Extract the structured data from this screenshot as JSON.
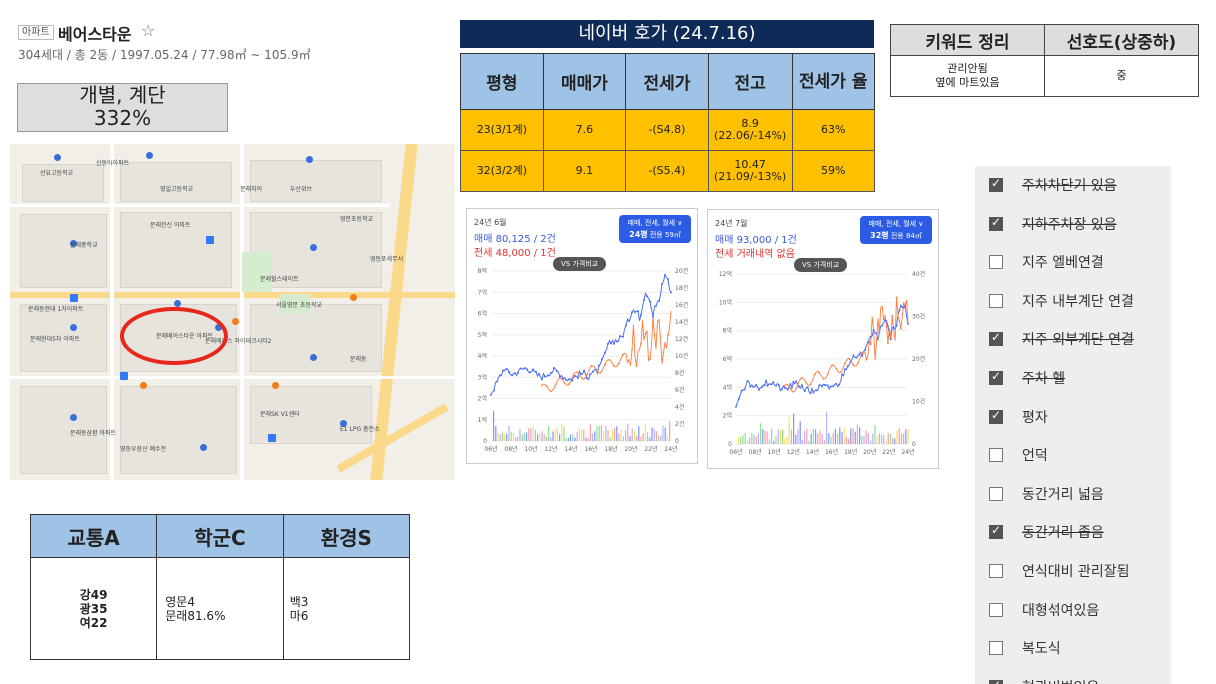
{
  "header": {
    "badge": "아파트",
    "name": "베어스타운",
    "star": "☆",
    "subinfo": "304세대 / 총 2동 / 1997.05.24 / 77.98㎡ ~ 105.9㎡"
  },
  "heating_box": {
    "line1": "개별, 계단",
    "line2": "332%"
  },
  "map": {
    "labels": [
      "신동아아파트",
      "문래베어스타운 아파트",
      "문래에이스 하이테크시티2",
      "문래동현대 1차아파트",
      "문래현대5차 아파트",
      "문래힐스테이트",
      "서울영문 초등학교",
      "문래중학교",
      "영문초등학교",
      "문래한신 아파트",
      "문래SK V1센터",
      "영등포세무서",
      "문래동",
      "E1 LPG 충전소",
      "선유고등학교",
      "문래동삼환 아파트",
      "영동우장산 예수전",
      "문래자이",
      "두산위브",
      "영일고등학교"
    ]
  },
  "naver": {
    "title": "네이버 호가 (24.7.16)",
    "headers": [
      "평형",
      "매매가",
      "전세가",
      "전고",
      "전세가 율"
    ],
    "rows": [
      {
        "size": "23(3/1계)",
        "sale": "7.6",
        "rent": "-(S4.8)",
        "peak_1": "8.9",
        "peak_2": "(22.06/-14%)",
        "ratio": "63%"
      },
      {
        "size": "32(3/2계)",
        "sale": "9.1",
        "rent": "-(S5.4)",
        "peak_1": "10.47",
        "peak_2": "(21.09/-13%)",
        "ratio": "59%"
      }
    ]
  },
  "keywords": {
    "headers": [
      "키워드 정리",
      "선호도(상중하)"
    ],
    "keyword_line1": "관리안됨",
    "keyword_line2": "옆에 마트있음",
    "preference": "중"
  },
  "chart1": {
    "date": "24년 6월",
    "sale": "매매 80,125 / 2건",
    "rent": "전세 48,000 / 1건",
    "btn_top": "매매, 전세, 월세 ∨",
    "btn_mid": "24평",
    "btn_small": "전용 59㎡",
    "vs": "VS 가격비교",
    "y_left": [
      "8억",
      "7억",
      "6억",
      "5억",
      "4억",
      "3억",
      "2억",
      "1억",
      "0"
    ],
    "y_right": [
      "20건",
      "18건",
      "16건",
      "14건",
      "12건",
      "10건",
      "8건",
      "6건",
      "4건",
      "2건",
      "0"
    ],
    "x_ticks": [
      "06년",
      "08년",
      "10년",
      "12년",
      "14년",
      "16년",
      "18년",
      "20년",
      "22년",
      "24년"
    ]
  },
  "chart2": {
    "date": "24년 7월",
    "sale": "매매 93,000 / 1건",
    "rent": "전세 거래내역 없음",
    "btn_top": "매매, 전세, 월세 ∨",
    "btn_mid": "32평",
    "btn_small": "전용 84㎡",
    "vs": "VS 가격비교",
    "y_left": [
      "12억",
      "10억",
      "8억",
      "6억",
      "4억",
      "2억",
      "0"
    ],
    "y_right": [
      "40건",
      "30건",
      "20건",
      "10건",
      "0"
    ],
    "x_ticks": [
      "06년",
      "08년",
      "10년",
      "12년",
      "14년",
      "16년",
      "18년",
      "20년",
      "22년",
      "24년"
    ]
  },
  "checklist": {
    "items": [
      {
        "label": "주차차단기 있음",
        "checked": true,
        "strike": true
      },
      {
        "label": "지하주차장 있음",
        "checked": true,
        "strike": true
      },
      {
        "label": "지주 엘베연결",
        "checked": false,
        "strike": false
      },
      {
        "label": "지주 내부계단 연결",
        "checked": false,
        "strike": false
      },
      {
        "label": "지주 외부계단 연결",
        "checked": true,
        "strike": true
      },
      {
        "label": "주차 헬",
        "checked": true,
        "strike": true
      },
      {
        "label": "평자",
        "checked": true,
        "strike": false
      },
      {
        "label": "언덕",
        "checked": false,
        "strike": false
      },
      {
        "label": "동간거리 넓음",
        "checked": false,
        "strike": false
      },
      {
        "label": "동간거리 좁음",
        "checked": true,
        "strike": true
      },
      {
        "label": "연식대비 관리잘됨",
        "checked": false,
        "strike": false
      },
      {
        "label": "대형섞여있음",
        "checked": false,
        "strike": false
      },
      {
        "label": "복도식",
        "checked": false,
        "strike": false
      },
      {
        "label": "현관비번있음",
        "checked": true,
        "strike": true
      }
    ]
  },
  "scores": {
    "headers": [
      "교통A",
      "학군C",
      "환경S"
    ],
    "transport": [
      "강49",
      "광35",
      "여22"
    ],
    "school": [
      "영문4",
      "문래81.6%"
    ],
    "environment": [
      "백3",
      "마6"
    ]
  }
}
